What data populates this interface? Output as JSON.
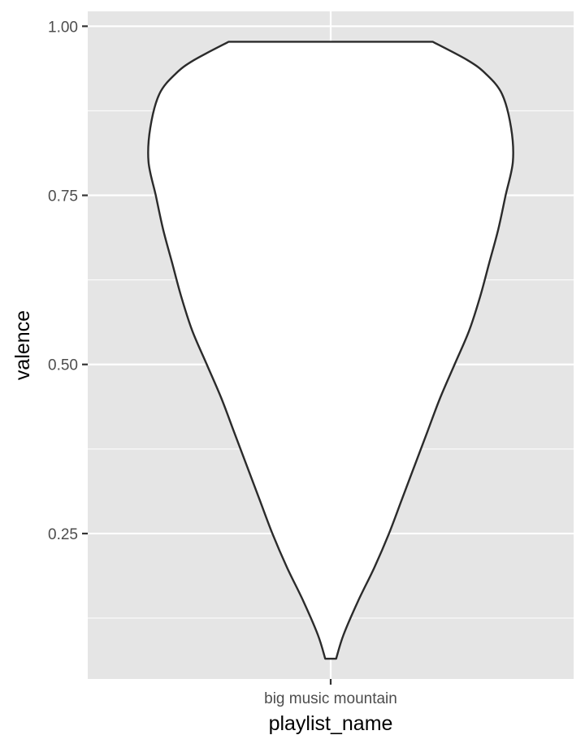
{
  "chart_data": {
    "type": "violin",
    "xlabel": "playlist_name",
    "ylabel": "valence",
    "categories": [
      "big music mountain"
    ],
    "y_ticks": [
      "0.25",
      "0.50",
      "0.75",
      "1.00"
    ],
    "y_tick_values": [
      0.25,
      0.5,
      0.75,
      1.0
    ],
    "ylim": [
      0.035,
      1.022
    ],
    "grid": true,
    "legend": "none",
    "series": [
      {
        "category": "big music mountain",
        "value_range": [
          0.065,
          0.977
        ],
        "density_profile": [
          [
            0.065,
            0.03
          ],
          [
            0.1,
            0.07
          ],
          [
            0.15,
            0.15
          ],
          [
            0.2,
            0.24
          ],
          [
            0.25,
            0.32
          ],
          [
            0.3,
            0.39
          ],
          [
            0.35,
            0.46
          ],
          [
            0.4,
            0.53
          ],
          [
            0.45,
            0.6
          ],
          [
            0.5,
            0.68
          ],
          [
            0.55,
            0.76
          ],
          [
            0.6,
            0.82
          ],
          [
            0.65,
            0.87
          ],
          [
            0.7,
            0.92
          ],
          [
            0.75,
            0.96
          ],
          [
            0.8,
            1.0
          ],
          [
            0.85,
            0.99
          ],
          [
            0.9,
            0.94
          ],
          [
            0.93,
            0.85
          ],
          [
            0.95,
            0.75
          ],
          [
            0.977,
            0.56
          ]
        ]
      }
    ],
    "colors": {
      "panel": "#e5e5e5",
      "grid": "#ffffff",
      "violin_fill": "#ffffff",
      "violin_stroke": "#2b2b2b",
      "tick_text": "#4d4d4d",
      "title_text": "#000000"
    }
  }
}
